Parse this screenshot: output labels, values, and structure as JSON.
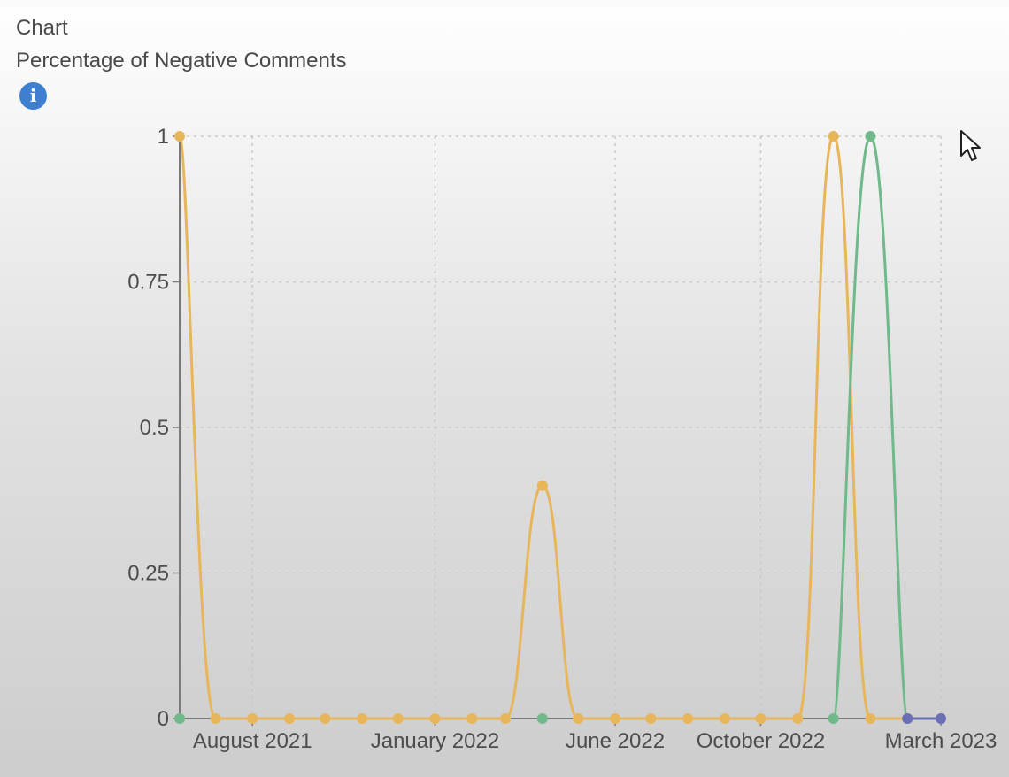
{
  "panel": {
    "heading": "Chart",
    "info_icon": "info-icon",
    "info_glyph": "i",
    "cursor_icon": "mouse-pointer-icon"
  },
  "colors": {
    "series_a": "#e8b65a",
    "series_b": "#6fb98a",
    "series_c": "#6a6fb8",
    "grid": "#c8c8c8",
    "axis": "#7a7a7a",
    "info_icon": "#3f7fcf"
  },
  "chart_data": {
    "type": "line",
    "title": "Percentage of Negative Comments",
    "xlabel": "",
    "ylabel": "",
    "ylim": [
      0,
      1
    ],
    "yticks": [
      0,
      0.25,
      0.5,
      0.75,
      1
    ],
    "ytick_labels": [
      "0",
      "0.25",
      "0.5",
      "0.75",
      "1"
    ],
    "x": [
      "2021-06-01",
      "2021-07-01",
      "2021-08-01",
      "2021-09-01",
      "2021-10-01",
      "2021-11-01",
      "2021-12-01",
      "2022-01-01",
      "2022-02-01",
      "2022-03-01",
      "2022-04-01",
      "2022-05-01",
      "2022-06-01",
      "2022-07-01",
      "2022-08-01",
      "2022-09-01",
      "2022-10-01",
      "2022-11-01",
      "2022-12-01",
      "2023-01-01",
      "2023-02-01",
      "2023-03-01"
    ],
    "xticks": [
      "2021-08-01",
      "2022-01-01",
      "2022-06-01",
      "2022-10-01",
      "2023-03-01"
    ],
    "xtick_labels": [
      "August 2021",
      "January 2022",
      "June 2022",
      "October 2022",
      "March 2023"
    ],
    "grid": true,
    "legend": "none",
    "series": [
      {
        "color": "#e8b65a",
        "values": [
          1,
          0,
          0,
          0,
          0,
          0,
          0,
          0,
          0,
          0,
          0.4,
          0,
          0,
          0,
          0,
          0,
          0,
          0,
          1,
          0,
          0,
          null
        ]
      },
      {
        "color": "#6fb98a",
        "values": [
          0,
          null,
          null,
          null,
          null,
          null,
          null,
          null,
          null,
          null,
          0,
          null,
          null,
          null,
          null,
          null,
          null,
          null,
          0,
          1,
          0,
          null
        ]
      },
      {
        "color": "#6a6fb8",
        "values": [
          null,
          null,
          null,
          null,
          null,
          null,
          null,
          null,
          null,
          null,
          null,
          null,
          null,
          null,
          null,
          null,
          null,
          null,
          null,
          null,
          0,
          0
        ]
      }
    ]
  }
}
